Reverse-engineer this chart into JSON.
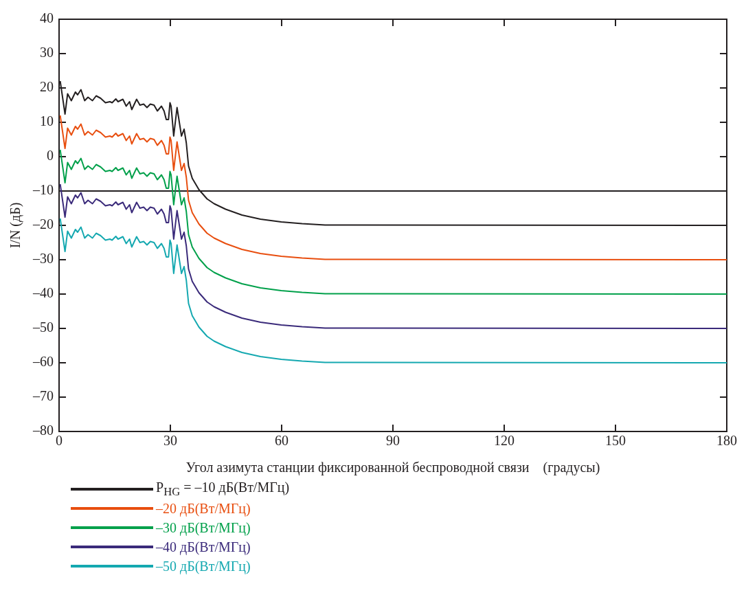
{
  "chart_data": {
    "type": "line",
    "xlabel": "Угол азимута станции фиксированной беспроводной связи    (градусы)",
    "ylabel": "I/N (дБ)",
    "x": [
      0.3,
      1.6,
      2.3,
      3.3,
      4.4,
      5,
      5.9,
      6.9,
      7.8,
      9,
      10,
      11.2,
      12.5,
      13.7,
      14.3,
      15.3,
      15.9,
      17.2,
      18.1,
      19,
      19.6,
      20.9,
      21.8,
      22.8,
      23.7,
      24.6,
      25.6,
      26.5,
      27.6,
      28.3,
      28.9,
      29.5,
      29.9,
      30.2,
      30.9,
      31.8,
      33,
      33.7,
      34.3,
      34.9,
      35.9,
      37.7,
      39.9,
      41.8,
      44.9,
      49.3,
      54.3,
      59.9,
      65.5,
      71.7,
      180
    ],
    "series": [
      {
        "name": "P$_{HG}$ = –10 дБ(Вт/МГц)",
        "color": "#231f20",
        "values": [
          22,
          12.4,
          18.3,
          16.3,
          18.8,
          18,
          19.5,
          16.3,
          17.3,
          16.3,
          17.7,
          17,
          15.7,
          16,
          15.7,
          16.8,
          16,
          16.7,
          14.7,
          16,
          13.7,
          16.7,
          15,
          15.3,
          14.3,
          15.3,
          15,
          13.3,
          14.7,
          13.3,
          10.8,
          10.8,
          15.7,
          14.7,
          6,
          14.3,
          6,
          8,
          4,
          -2.7,
          -6.3,
          -9.6,
          -12.3,
          -13.7,
          -15.3,
          -17,
          -18.2,
          -19,
          -19.5,
          -19.9,
          -20
        ]
      },
      {
        "name": "–20 дБ(Вт/МГц)",
        "color": "#e84e0f",
        "values": [
          12,
          2.4,
          8.3,
          6.3,
          8.8,
          8,
          9.5,
          6.3,
          7.3,
          6.3,
          7.7,
          7,
          5.7,
          6,
          5.7,
          6.8,
          6,
          6.7,
          4.7,
          6,
          3.7,
          6.7,
          5,
          5.3,
          4.3,
          5.3,
          5,
          3.3,
          4.7,
          3.3,
          0.8,
          0.8,
          5.7,
          4.7,
          -4,
          4.3,
          -4,
          -2,
          -6,
          -12.7,
          -16.3,
          -19.6,
          -22.3,
          -23.7,
          -25.3,
          -27,
          -28.2,
          -29,
          -29.5,
          -29.9,
          -30
        ]
      },
      {
        "name": "–30 дБ(Вт/МГц)",
        "color": "#00a04a",
        "values": [
          2,
          -7.6,
          -1.7,
          -3.7,
          -1.2,
          -2,
          -0.5,
          -3.7,
          -2.7,
          -3.7,
          -2.3,
          -3,
          -4.3,
          -4,
          -4.3,
          -3.2,
          -4,
          -3.3,
          -5.3,
          -4,
          -6.3,
          -3.3,
          -5,
          -4.7,
          -5.7,
          -4.7,
          -5,
          -6.7,
          -5.3,
          -6.7,
          -9.2,
          -9.2,
          -4.3,
          -5.3,
          -14,
          -5.7,
          -14,
          -12,
          -16,
          -22.7,
          -26.3,
          -29.6,
          -32.3,
          -33.7,
          -35.3,
          -37,
          -38.2,
          -39,
          -39.5,
          -39.9,
          -40
        ]
      },
      {
        "name": "–40 дБ(Вт/МГц)",
        "color": "#3a2a7a",
        "values": [
          -8,
          -17.6,
          -11.7,
          -13.7,
          -11.2,
          -12,
          -10.5,
          -13.7,
          -12.7,
          -13.7,
          -12.3,
          -13,
          -14.3,
          -14,
          -14.3,
          -13.2,
          -14,
          -13.3,
          -15.3,
          -14,
          -16.3,
          -13.3,
          -15,
          -14.7,
          -15.7,
          -14.7,
          -15,
          -16.7,
          -15.3,
          -16.7,
          -19.2,
          -19.2,
          -14.3,
          -15.3,
          -24,
          -15.7,
          -24,
          -22,
          -26,
          -32.7,
          -36.3,
          -39.6,
          -42.3,
          -43.7,
          -45.3,
          -47,
          -48.2,
          -49,
          -49.5,
          -49.9,
          -50
        ]
      },
      {
        "name": "–50 дБ(Вт/МГц)",
        "color": "#14a8b0",
        "values": [
          -18,
          -27.6,
          -21.7,
          -23.7,
          -21.2,
          -22,
          -20.5,
          -23.7,
          -22.7,
          -23.7,
          -22.3,
          -23,
          -24.3,
          -24,
          -24.3,
          -23.2,
          -24,
          -23.3,
          -25.3,
          -24,
          -26.3,
          -23.3,
          -25,
          -24.7,
          -25.7,
          -24.7,
          -25,
          -26.7,
          -25.3,
          -26.7,
          -29.2,
          -29.2,
          -24.3,
          -25.3,
          -34,
          -25.7,
          -34,
          -32,
          -36,
          -42.7,
          -46.3,
          -49.6,
          -52.3,
          -53.7,
          -55.3,
          -57,
          -58.2,
          -59,
          -59.5,
          -59.9,
          -60
        ]
      }
    ],
    "xlim": [
      0,
      180
    ],
    "xticks": [
      0,
      30,
      60,
      90,
      120,
      150,
      180
    ],
    "ylim": [
      -80,
      40
    ],
    "yticks": [
      {
        "value": -80,
        "label": "–80"
      },
      {
        "value": -70,
        "label": "–70"
      },
      {
        "value": -60,
        "label": "–60"
      },
      {
        "value": -50,
        "label": "–50"
      },
      {
        "value": -40,
        "label": "–40"
      },
      {
        "value": -30,
        "label": "–30"
      },
      {
        "value": -20,
        "label": "–20"
      },
      {
        "value": -10,
        "label": "–10"
      },
      0,
      10,
      20,
      30,
      40
    ],
    "ref_lines": [
      {
        "axis": "y",
        "value": -10,
        "color": "#231f20"
      }
    ],
    "grid": false,
    "legend": "bottom",
    "marker": "none",
    "line_style": "solid"
  }
}
